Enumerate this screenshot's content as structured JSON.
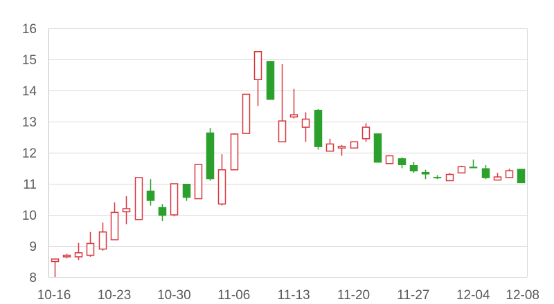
{
  "chart_data": {
    "type": "candlestick",
    "title": "",
    "xlabel": "",
    "ylabel": "",
    "ylim": [
      8,
      16
    ],
    "yticks": [
      8,
      9,
      10,
      11,
      12,
      13,
      14,
      15,
      16
    ],
    "grid": "horizontal",
    "x_tick_labels": [
      "10-16",
      "10-23",
      "10-30",
      "11-06",
      "11-13",
      "11-20",
      "11-27",
      "12-04",
      "12-08"
    ],
    "colors": {
      "up": "#d9363e",
      "down": "#2ca02c",
      "grid": "#d9d9d9",
      "axis": "#bfbfbf",
      "text": "#595959"
    },
    "candles": [
      {
        "date": "10-16",
        "open": 8.5,
        "high": 8.6,
        "low": 8.0,
        "close": 8.58
      },
      {
        "date": "10-17",
        "open": 8.65,
        "high": 8.75,
        "low": 8.6,
        "close": 8.7
      },
      {
        "date": "10-18",
        "open": 8.65,
        "high": 9.1,
        "low": 8.55,
        "close": 8.78
      },
      {
        "date": "10-19",
        "open": 8.7,
        "high": 9.45,
        "low": 8.65,
        "close": 9.08
      },
      {
        "date": "10-20",
        "open": 8.9,
        "high": 9.75,
        "low": 8.85,
        "close": 9.45
      },
      {
        "date": "10-23",
        "open": 9.2,
        "high": 10.4,
        "low": 9.2,
        "close": 10.08
      },
      {
        "date": "10-24",
        "open": 10.1,
        "high": 10.6,
        "low": 9.7,
        "close": 10.2
      },
      {
        "date": "10-25",
        "open": 9.85,
        "high": 11.2,
        "low": 9.85,
        "close": 11.2
      },
      {
        "date": "10-26",
        "open": 10.78,
        "high": 11.15,
        "low": 10.3,
        "close": 10.45
      },
      {
        "date": "10-27",
        "open": 10.25,
        "high": 10.35,
        "low": 9.8,
        "close": 9.97
      },
      {
        "date": "10-30",
        "open": 10.0,
        "high": 11.0,
        "low": 9.95,
        "close": 11.0
      },
      {
        "date": "10-31",
        "open": 11.0,
        "high": 11.0,
        "low": 10.45,
        "close": 10.55
      },
      {
        "date": "11-01",
        "open": 10.52,
        "high": 11.62,
        "low": 10.52,
        "close": 11.62
      },
      {
        "date": "11-02",
        "open": 12.65,
        "high": 12.8,
        "low": 11.1,
        "close": 11.15
      },
      {
        "date": "11-03",
        "open": 10.35,
        "high": 11.95,
        "low": 10.3,
        "close": 11.45
      },
      {
        "date": "11-06",
        "open": 11.45,
        "high": 12.62,
        "low": 11.45,
        "close": 12.6
      },
      {
        "date": "11-07",
        "open": 12.62,
        "high": 13.88,
        "low": 12.62,
        "close": 13.88
      },
      {
        "date": "11-08",
        "open": 14.35,
        "high": 15.25,
        "low": 13.5,
        "close": 15.25
      },
      {
        "date": "11-09",
        "open": 14.95,
        "high": 14.95,
        "low": 13.7,
        "close": 13.7
      },
      {
        "date": "11-10",
        "open": 12.35,
        "high": 14.85,
        "low": 12.35,
        "close": 13.02
      },
      {
        "date": "11-13",
        "open": 13.15,
        "high": 14.05,
        "low": 13.1,
        "close": 13.22
      },
      {
        "date": "11-14",
        "open": 12.82,
        "high": 13.3,
        "low": 12.35,
        "close": 13.08
      },
      {
        "date": "11-15",
        "open": 13.38,
        "high": 13.4,
        "low": 12.1,
        "close": 12.18
      },
      {
        "date": "11-16",
        "open": 12.05,
        "high": 12.45,
        "low": 12.05,
        "close": 12.28
      },
      {
        "date": "11-17",
        "open": 12.15,
        "high": 12.25,
        "low": 11.9,
        "close": 12.2
      },
      {
        "date": "11-20",
        "open": 12.15,
        "high": 12.35,
        "low": 12.15,
        "close": 12.35
      },
      {
        "date": "11-21",
        "open": 12.45,
        "high": 12.95,
        "low": 12.35,
        "close": 12.82
      },
      {
        "date": "11-22",
        "open": 12.62,
        "high": 12.62,
        "low": 11.68,
        "close": 11.68
      },
      {
        "date": "11-23",
        "open": 11.65,
        "high": 11.92,
        "low": 11.65,
        "close": 11.9
      },
      {
        "date": "11-24",
        "open": 11.82,
        "high": 11.85,
        "low": 11.5,
        "close": 11.6
      },
      {
        "date": "11-27",
        "open": 11.6,
        "high": 11.7,
        "low": 11.35,
        "close": 11.4
      },
      {
        "date": "11-28",
        "open": 11.38,
        "high": 11.45,
        "low": 11.15,
        "close": 11.3
      },
      {
        "date": "11-29",
        "open": 11.22,
        "high": 11.28,
        "low": 11.15,
        "close": 11.18
      },
      {
        "date": "11-30",
        "open": 11.1,
        "high": 11.35,
        "low": 11.1,
        "close": 11.3
      },
      {
        "date": "12-01",
        "open": 11.35,
        "high": 11.58,
        "low": 11.35,
        "close": 11.55
      },
      {
        "date": "12-04",
        "open": 11.55,
        "high": 11.78,
        "low": 11.5,
        "close": 11.5
      },
      {
        "date": "12-05",
        "open": 11.5,
        "high": 11.6,
        "low": 11.15,
        "close": 11.18
      },
      {
        "date": "12-06",
        "open": 11.12,
        "high": 11.35,
        "low": 11.12,
        "close": 11.22
      },
      {
        "date": "12-07",
        "open": 11.2,
        "high": 11.48,
        "low": 11.2,
        "close": 11.42
      },
      {
        "date": "12-08",
        "open": 11.48,
        "high": 11.48,
        "low": 11.02,
        "close": 11.02
      }
    ]
  }
}
